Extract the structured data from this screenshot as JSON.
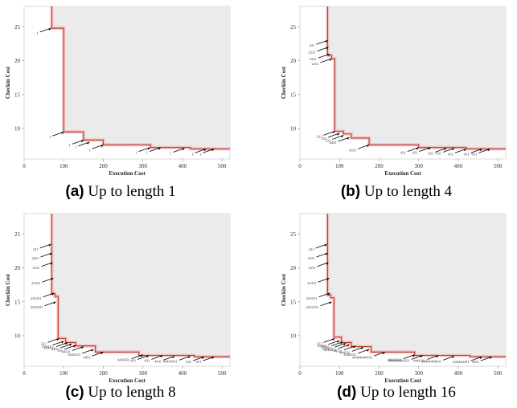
{
  "chart_data": [
    {
      "type": "line",
      "caption_tag": "(a)",
      "caption_text": " Up to length 1",
      "xlabel": "Execution Cost",
      "ylabel": "Checkin Cost",
      "xlim": [
        0,
        520
      ],
      "ylim": [
        5.5,
        28
      ],
      "xticks": [
        0,
        100,
        200,
        300,
        400,
        500
      ],
      "yticks": [
        10,
        15,
        20,
        25
      ],
      "frontier": [
        [
          70,
          28
        ],
        [
          70,
          24.8
        ],
        [
          100,
          24.8
        ],
        [
          100,
          9.5
        ],
        [
          150,
          9.5
        ],
        [
          150,
          8.3
        ],
        [
          200,
          8.3
        ],
        [
          200,
          7.6
        ],
        [
          320,
          7.6
        ],
        [
          320,
          7.2
        ],
        [
          420,
          7.2
        ],
        [
          420,
          7.0
        ],
        [
          520,
          7.0
        ]
      ],
      "points": [
        {
          "x": 68,
          "y": 24.8,
          "label": "1"
        },
        {
          "x": 100,
          "y": 9.5,
          "label": "1"
        },
        {
          "x": 150,
          "y": 8.3,
          "label": "1"
        },
        {
          "x": 165,
          "y": 8.0,
          "label": "1"
        },
        {
          "x": 200,
          "y": 7.6,
          "label": "1"
        },
        {
          "x": 318,
          "y": 7.2,
          "label": "1"
        },
        {
          "x": 345,
          "y": 7.2,
          "label": "1"
        },
        {
          "x": 405,
          "y": 7.1,
          "label": "1"
        },
        {
          "x": 460,
          "y": 7.0,
          "label": "1"
        },
        {
          "x": 480,
          "y": 7.0,
          "label": "1"
        }
      ]
    },
    {
      "type": "line",
      "caption_tag": "(b)",
      "caption_text": " Up to length 4",
      "xlabel": "Execution Cost",
      "ylabel": "Checkin Cost",
      "xlim": [
        0,
        520
      ],
      "ylim": [
        5.5,
        28
      ],
      "xticks": [
        0,
        100,
        200,
        300,
        400,
        500
      ],
      "yticks": [
        10,
        15,
        20,
        25
      ],
      "frontier": [
        [
          70,
          28
        ],
        [
          70,
          20.8
        ],
        [
          80,
          20.8
        ],
        [
          80,
          20.3
        ],
        [
          88,
          20.3
        ],
        [
          88,
          9.6
        ],
        [
          110,
          9.6
        ],
        [
          110,
          9.2
        ],
        [
          130,
          9.2
        ],
        [
          130,
          8.6
        ],
        [
          175,
          8.6
        ],
        [
          175,
          7.6
        ],
        [
          300,
          7.6
        ],
        [
          300,
          7.2
        ],
        [
          420,
          7.2
        ],
        [
          420,
          7.0
        ],
        [
          520,
          7.0
        ]
      ],
      "points": [
        {
          "x": 70,
          "y": 23.0,
          "label": "221"
        },
        {
          "x": 72,
          "y": 22.0,
          "label": "2221"
        },
        {
          "x": 75,
          "y": 21.0,
          "label": "2221"
        },
        {
          "x": 80,
          "y": 20.3,
          "label": "2231"
        },
        {
          "x": 88,
          "y": 9.6,
          "label": "221"
        },
        {
          "x": 100,
          "y": 9.3,
          "label": "331"
        },
        {
          "x": 110,
          "y": 9.0,
          "label": "331"
        },
        {
          "x": 125,
          "y": 8.7,
          "label": "4431"
        },
        {
          "x": 175,
          "y": 7.6,
          "label": "4331"
        },
        {
          "x": 300,
          "y": 7.2,
          "label": "431"
        },
        {
          "x": 330,
          "y": 7.2,
          "label": "431"
        },
        {
          "x": 370,
          "y": 7.1,
          "label": "431"
        },
        {
          "x": 390,
          "y": 7.1,
          "label": "431"
        },
        {
          "x": 420,
          "y": 7.0,
          "label": "431"
        },
        {
          "x": 460,
          "y": 7.0,
          "label": "431"
        },
        {
          "x": 480,
          "y": 7.0,
          "label": "431"
        }
      ]
    },
    {
      "type": "line",
      "caption_tag": "(c)",
      "caption_text": " Up to length 8",
      "xlabel": "Execution Cost",
      "ylabel": "Checkin Cost",
      "xlim": [
        0,
        520
      ],
      "ylim": [
        5.5,
        28
      ],
      "xticks": [
        0,
        100,
        200,
        300,
        400,
        500
      ],
      "yticks": [
        10,
        15,
        20,
        25
      ],
      "frontier": [
        [
          70,
          28
        ],
        [
          70,
          16.2
        ],
        [
          78,
          16.2
        ],
        [
          78,
          15.8
        ],
        [
          86,
          15.8
        ],
        [
          86,
          9.6
        ],
        [
          105,
          9.6
        ],
        [
          105,
          9.0
        ],
        [
          130,
          9.0
        ],
        [
          130,
          8.5
        ],
        [
          180,
          8.5
        ],
        [
          180,
          7.6
        ],
        [
          290,
          7.6
        ],
        [
          290,
          7.1
        ],
        [
          430,
          7.1
        ],
        [
          430,
          6.9
        ],
        [
          520,
          6.9
        ]
      ],
      "points": [
        {
          "x": 68,
          "y": 23.5,
          "label": "221"
        },
        {
          "x": 70,
          "y": 22.2,
          "label": "2221"
        },
        {
          "x": 72,
          "y": 20.8,
          "label": "2231"
        },
        {
          "x": 74,
          "y": 18.5,
          "label": "22331"
        },
        {
          "x": 76,
          "y": 16.3,
          "label": "223331"
        },
        {
          "x": 80,
          "y": 15.0,
          "label": "2233331"
        },
        {
          "x": 88,
          "y": 9.6,
          "label": "221"
        },
        {
          "x": 100,
          "y": 9.2,
          "label": "22431"
        },
        {
          "x": 110,
          "y": 9.0,
          "label": "224431"
        },
        {
          "x": 120,
          "y": 8.8,
          "label": "2231"
        },
        {
          "x": 130,
          "y": 8.6,
          "label": "331"
        },
        {
          "x": 150,
          "y": 8.4,
          "label": "44331"
        },
        {
          "x": 175,
          "y": 8.0,
          "label": "4444331"
        },
        {
          "x": 200,
          "y": 7.6,
          "label": "4431"
        },
        {
          "x": 300,
          "y": 7.2,
          "label": "4444331"
        },
        {
          "x": 315,
          "y": 7.1,
          "label": "431"
        },
        {
          "x": 350,
          "y": 7.1,
          "label": "431"
        },
        {
          "x": 380,
          "y": 7.0,
          "label": "4431"
        },
        {
          "x": 420,
          "y": 7.0,
          "label": "44444331"
        },
        {
          "x": 455,
          "y": 6.9,
          "label": "431"
        },
        {
          "x": 480,
          "y": 6.9,
          "label": "431"
        }
      ]
    },
    {
      "type": "line",
      "caption_tag": "(d)",
      "caption_text": " Up to length 16",
      "xlabel": "Execution Cost",
      "ylabel": "Checkin Cost",
      "xlim": [
        0,
        520
      ],
      "ylim": [
        5.5,
        28
      ],
      "xticks": [
        0,
        100,
        200,
        300,
        400,
        500
      ],
      "yticks": [
        10,
        15,
        20,
        25
      ],
      "frontier": [
        [
          70,
          28
        ],
        [
          70,
          16.0
        ],
        [
          78,
          16.0
        ],
        [
          78,
          15.6
        ],
        [
          86,
          15.6
        ],
        [
          86,
          9.8
        ],
        [
          105,
          9.8
        ],
        [
          105,
          9.0
        ],
        [
          130,
          9.0
        ],
        [
          130,
          8.4
        ],
        [
          180,
          8.4
        ],
        [
          180,
          7.6
        ],
        [
          290,
          7.6
        ],
        [
          290,
          7.1
        ],
        [
          430,
          7.1
        ],
        [
          430,
          6.9
        ],
        [
          520,
          6.9
        ]
      ],
      "points": [
        {
          "x": 68,
          "y": 23.5,
          "label": "221"
        },
        {
          "x": 70,
          "y": 22.2,
          "label": "2221"
        },
        {
          "x": 72,
          "y": 20.8,
          "label": "2231"
        },
        {
          "x": 74,
          "y": 18.5,
          "label": "22331"
        },
        {
          "x": 76,
          "y": 16.3,
          "label": "223331"
        },
        {
          "x": 80,
          "y": 15.0,
          "label": "2233331"
        },
        {
          "x": 88,
          "y": 9.6,
          "label": "221"
        },
        {
          "x": 100,
          "y": 9.3,
          "label": "22431"
        },
        {
          "x": 108,
          "y": 9.1,
          "label": "22431"
        },
        {
          "x": 116,
          "y": 8.9,
          "label": "224431"
        },
        {
          "x": 125,
          "y": 8.7,
          "label": "2244431"
        },
        {
          "x": 140,
          "y": 8.5,
          "label": "44331"
        },
        {
          "x": 160,
          "y": 8.3,
          "label": "444331"
        },
        {
          "x": 175,
          "y": 8.0,
          "label": "4444331"
        },
        {
          "x": 215,
          "y": 7.6,
          "label": "44444444331"
        },
        {
          "x": 290,
          "y": 7.2,
          "label": "44444331"
        },
        {
          "x": 310,
          "y": 7.1,
          "label": "444444444331"
        },
        {
          "x": 350,
          "y": 7.1,
          "label": "4444331"
        },
        {
          "x": 390,
          "y": 7.0,
          "label": "44444444431"
        },
        {
          "x": 460,
          "y": 6.9,
          "label": "444444431"
        },
        {
          "x": 485,
          "y": 6.9,
          "label": "4431"
        }
      ]
    }
  ]
}
